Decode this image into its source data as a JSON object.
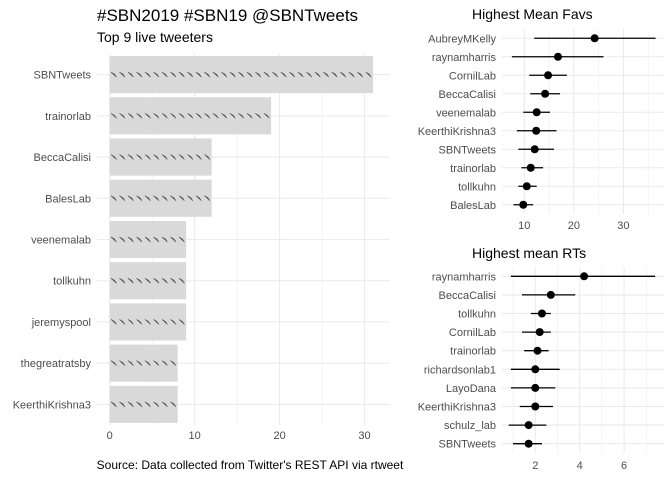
{
  "page": {
    "title": "#SBN2019 #SBN19 @SBNTweets",
    "caption": "Source: Data collected from Twitter's REST API via rtweet"
  },
  "colors": {
    "bar_fill": "#d9d9d9",
    "grid": "#ebebeb",
    "point": "#000000",
    "text": "#4d4d4d"
  },
  "chart_data": [
    {
      "type": "bar",
      "orientation": "horizontal",
      "subtitle": "Top 9 live tweeters",
      "categories": [
        "SBNTweets",
        "trainorlab",
        "BeccaCalisi",
        "BalesLab",
        "veenemalab",
        "tollkuhn",
        "jeremyspool",
        "thegreatratsby",
        "KeerthiKrishna3"
      ],
      "values": [
        31,
        19,
        12,
        12,
        9,
        9,
        9,
        8,
        8
      ],
      "xticks": [
        0,
        10,
        20,
        30
      ],
      "xlim": [
        -1.5,
        33
      ],
      "grid": true,
      "icon": "bird-icon"
    },
    {
      "type": "scatter",
      "subtype": "point-range",
      "title": "Highest Mean Favs",
      "categories": [
        "AubreyMKelly",
        "raynamharris",
        "CornilLab",
        "BeccaCalisi",
        "veenemalab",
        "KeerthiKrishna3",
        "SBNTweets",
        "trainorlab",
        "tollkuhn",
        "BalesLab"
      ],
      "means": [
        24.2,
        16.8,
        14.8,
        14.2,
        12.5,
        12.4,
        12.1,
        11.3,
        10.5,
        9.8
      ],
      "low": [
        12.0,
        7.5,
        11.0,
        11.2,
        9.8,
        8.5,
        8.8,
        9.4,
        8.8,
        7.8
      ],
      "high": [
        36.5,
        26.0,
        18.6,
        17.2,
        15.2,
        16.5,
        16.0,
        13.8,
        12.5,
        11.8
      ],
      "xticks": [
        10,
        20,
        30
      ],
      "xlim": [
        5.5,
        38.2
      ],
      "grid": true
    },
    {
      "type": "scatter",
      "subtype": "point-range",
      "title": "Highest mean RTs",
      "categories": [
        "raynamharris",
        "BeccaCalisi",
        "tollkuhn",
        "CornilLab",
        "trainorlab",
        "richardsonlab1",
        "LayoDana",
        "KeerthiKrishna3",
        "schulz_lab",
        "SBNTweets"
      ],
      "means": [
        4.2,
        2.7,
        2.3,
        2.2,
        2.1,
        2.0,
        2.0,
        2.0,
        1.7,
        1.7
      ],
      "low": [
        0.9,
        1.4,
        1.8,
        1.4,
        1.5,
        0.9,
        0.9,
        1.3,
        0.8,
        1.0
      ],
      "high": [
        7.4,
        3.8,
        2.7,
        2.7,
        2.6,
        3.1,
        2.9,
        2.8,
        2.5,
        2.3
      ],
      "xticks": [
        2,
        4,
        6
      ],
      "xlim": [
        0.5,
        7.8
      ],
      "grid": true
    }
  ]
}
